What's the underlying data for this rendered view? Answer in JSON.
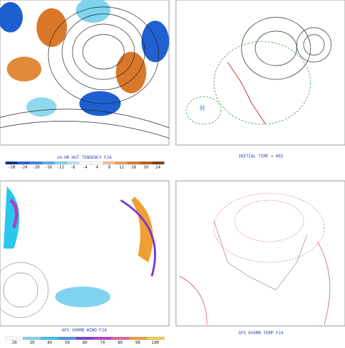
{
  "panels": [
    {
      "caption": "24-HR HGT TENDENCY F24",
      "colorbar": [
        "-28",
        "-24",
        "-20",
        "-16",
        "-12",
        "-8",
        "-4",
        "4",
        "8",
        "12",
        "16",
        "20",
        "24"
      ]
    },
    {
      "caption": "INITIAL TIME = 00Z"
    },
    {
      "caption": "GFS 300MB WIND F24",
      "colorbar": [
        "20",
        "30",
        "40",
        "50",
        "60",
        "70",
        "80",
        "90",
        "100"
      ]
    },
    {
      "caption": "GFS 850MB TEMP F24"
    }
  ]
}
